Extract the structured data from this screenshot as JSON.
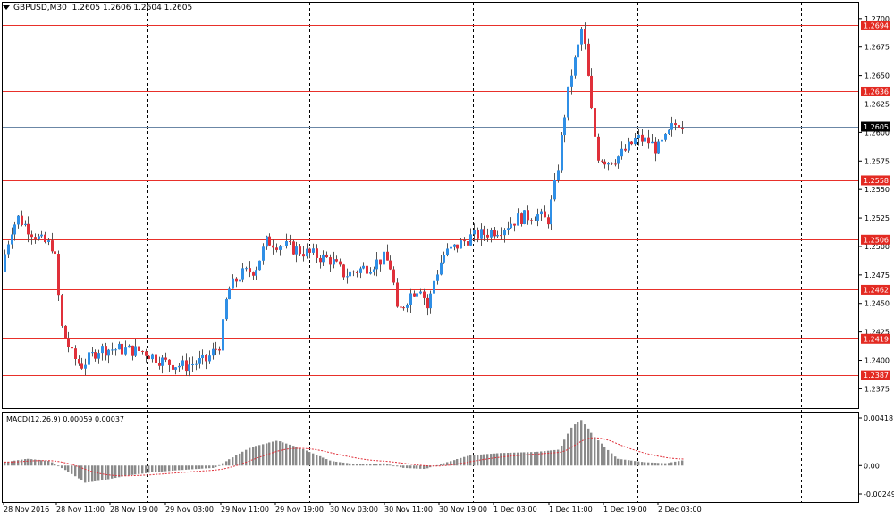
{
  "chart_title": {
    "symbol": "GBPUSD,M30",
    "ohlc": "1.2605 1.2606 1.2604 1.2605"
  },
  "macd_title": {
    "name": "MACD(12,26,9)",
    "values": "0.00059 0.00037"
  },
  "colors": {
    "bull": "#2f8fe6",
    "bear": "#e0303a",
    "level_line": "#e8302a",
    "current_line": "#6b87a6",
    "histogram": "#8a8a8a",
    "signal": "#e0303a",
    "label_bg_red": "#e32a22",
    "label_bg_current": "#000000"
  },
  "chart_data": [
    {
      "type": "candlestick",
      "price_axis_ticks": [
        "1.2700",
        "1.2675",
        "1.2650",
        "1.2625",
        "1.2600",
        "1.2575",
        "1.2550",
        "1.2525",
        "1.2500",
        "1.2475",
        "1.2450",
        "1.2425",
        "1.2400",
        "1.2375"
      ],
      "ylim": [
        1.2362,
        1.2703
      ],
      "time_labels": [
        "28 Nov 2016",
        "28 Nov 11:00",
        "28 Nov 19:00",
        "29 Nov 03:00",
        "29 Nov 11:00",
        "29 Nov 19:00",
        "30 Nov 03:00",
        "30 Nov 11:00",
        "30 Nov 19:00",
        "1 Dec 03:00",
        "1 Dec 11:00",
        "1 Dec 19:00",
        "2 Dec 03:00"
      ],
      "horizontal_levels": [
        "1.2694",
        "1.2636",
        "1.2558",
        "1.2506",
        "1.2462",
        "1.2419",
        "1.2387"
      ],
      "current_price": "1.2605",
      "grid": "dashed vertical period separators"
    },
    {
      "type": "bar",
      "indicator": "MACD",
      "axis_ticks": [
        "0.00418",
        "0.00",
        "-0.00249"
      ],
      "ylim": [
        -0.00249,
        0.00418
      ],
      "signal_line": true
    }
  ]
}
